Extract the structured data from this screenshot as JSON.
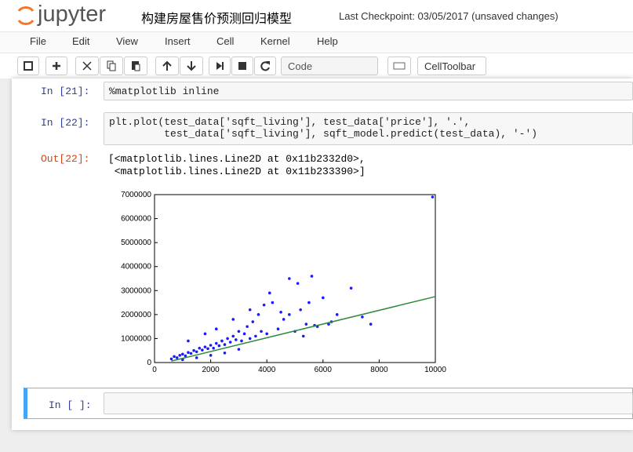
{
  "header": {
    "logo": "jupyter",
    "title": "构建房屋售价预测回归模型",
    "checkpoint": "Last Checkpoint: 03/05/2017 (unsaved changes)"
  },
  "menu": [
    "File",
    "Edit",
    "View",
    "Insert",
    "Cell",
    "Kernel",
    "Help"
  ],
  "toolbar": {
    "cell_type": "Code",
    "celltoolbar": "CellToolbar"
  },
  "cells": [
    {
      "prompt": "In [21]:",
      "code": [
        "%matplotlib inline"
      ]
    },
    {
      "prompt": "In [22]:",
      "code": [
        "plt.plot(test_data['sqft_living'], test_data['price'], '.',",
        "         test_data['sqft_living'], sqft_model.predict(test_data), '-')"
      ]
    },
    {
      "prompt": "Out[22]:",
      "output": [
        "[<matplotlib.lines.Line2D at 0x11b2332d0>,",
        " <matplotlib.lines.Line2D at 0x11b233390>]"
      ]
    },
    {
      "prompt": "In [ ]:"
    }
  ],
  "chart_data": {
    "type": "scatter",
    "xlim": [
      0,
      10000
    ],
    "ylim": [
      0,
      7000000
    ],
    "xticks": [
      0,
      2000,
      4000,
      6000,
      8000,
      10000
    ],
    "yticks": [
      0,
      1000000,
      2000000,
      3000000,
      4000000,
      5000000,
      6000000,
      7000000
    ],
    "series": [
      {
        "mode": "markers",
        "color": "#1a1aff",
        "x": [
          600,
          700,
          800,
          900,
          1000,
          1100,
          1200,
          1300,
          1400,
          1500,
          1600,
          1700,
          1800,
          1900,
          2000,
          2100,
          2200,
          2300,
          2400,
          2500,
          2600,
          2700,
          2800,
          2900,
          3000,
          3100,
          3200,
          3300,
          3400,
          3500,
          3600,
          3700,
          3800,
          3900,
          4000,
          4200,
          4400,
          4600,
          4800,
          5000,
          5200,
          5400,
          5600,
          5800,
          6000,
          6200,
          6500,
          7000,
          7400,
          7700,
          9900,
          1000,
          1500,
          2000,
          2500,
          3000,
          1200,
          1800,
          2200,
          2800,
          3400,
          4100,
          4500,
          5100,
          5500,
          4800,
          5300,
          6300,
          5700
        ],
        "values": [
          150000,
          250000,
          200000,
          300000,
          350000,
          280000,
          420000,
          380000,
          500000,
          450000,
          600000,
          520000,
          650000,
          580000,
          720000,
          600000,
          800000,
          700000,
          900000,
          750000,
          1000000,
          850000,
          1100000,
          950000,
          1300000,
          900000,
          1200000,
          1500000,
          1000000,
          1700000,
          1100000,
          2000000,
          1300000,
          2400000,
          1200000,
          2500000,
          1400000,
          1800000,
          3500000,
          1300000,
          2200000,
          1600000,
          3600000,
          1500000,
          2700000,
          1600000,
          2000000,
          3100000,
          1900000,
          1600000,
          6900000,
          120000,
          200000,
          300000,
          400000,
          550000,
          900000,
          1200000,
          1400000,
          1800000,
          2200000,
          2900000,
          2100000,
          3300000,
          2500000,
          2000000,
          1100000,
          1700000,
          1550000
        ]
      },
      {
        "mode": "line",
        "color": "#2e8b3e",
        "x": [
          600,
          10000
        ],
        "values": [
          60000,
          2750000
        ]
      }
    ]
  }
}
